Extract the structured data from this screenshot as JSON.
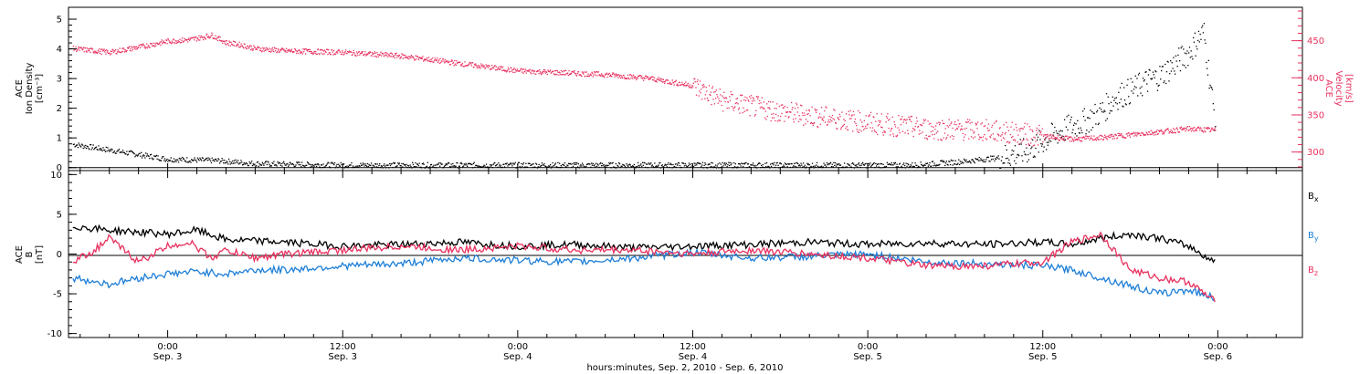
{
  "colors": {
    "density": "#000000",
    "velocity": "#e8315f",
    "bx": "#000000",
    "by": "#1e7fd8",
    "bz": "#e8315f",
    "frame": "#000000"
  },
  "chart_data": [
    {
      "type": "scatter",
      "panel": "top",
      "ylabel_left": [
        "ACE",
        "Ion Density",
        "[cm⁻³]"
      ],
      "ylabel_right": [
        "ACE",
        "Velocity",
        "[km/s]"
      ],
      "ylim_left": [
        -0.1,
        5.4
      ],
      "ylim_right": [
        275,
        495
      ],
      "yticks_left": [
        "0",
        "1",
        "2",
        "3",
        "4",
        "5"
      ],
      "yticks_right": [
        "300",
        "350",
        "400",
        "450"
      ],
      "grid": false,
      "series": [
        {
          "axis": "left",
          "color": "black",
          "x": [
            -6.5,
            0,
            3.5,
            6,
            12,
            20,
            24,
            30,
            36,
            42,
            48,
            51,
            54,
            57,
            59,
            60,
            61,
            62,
            63,
            64,
            65,
            66,
            67,
            68,
            69,
            70,
            71,
            71.8
          ],
          "y": [
            0.8,
            0.3,
            0.25,
            0.15,
            0.1,
            0.1,
            0.1,
            0.1,
            0.1,
            0.1,
            0.1,
            0.1,
            0.2,
            0.35,
            0.6,
            0.9,
            1.2,
            1.4,
            1.6,
            1.9,
            2.4,
            2.6,
            2.9,
            3.1,
            3.5,
            3.9,
            4.6,
            1.5
          ]
        },
        {
          "axis": "right",
          "color": "red",
          "x": [
            -6.5,
            -4,
            -2,
            0,
            1.5,
            3,
            4,
            5,
            6,
            8,
            12,
            16,
            20,
            24,
            30,
            33,
            36,
            38,
            42,
            48,
            52,
            56,
            60,
            62,
            64,
            66,
            68,
            70,
            71.8
          ],
          "y": [
            440,
            435,
            442,
            450,
            452,
            458,
            448,
            445,
            440,
            437,
            435,
            430,
            420,
            410,
            405,
            400,
            390,
            370,
            355,
            340,
            332,
            330,
            322,
            318,
            320,
            324,
            328,
            332,
            330
          ]
        }
      ]
    },
    {
      "type": "line",
      "panel": "bottom",
      "ylabel": [
        "ACE",
        "B",
        "[nT]"
      ],
      "ylim": [
        -10.5,
        10.5
      ],
      "yticks": [
        "-10",
        "-5",
        "0",
        "5",
        "10"
      ],
      "grid": false,
      "legend_position": "right",
      "series": [
        {
          "name": "Bx",
          "color": "black",
          "x": [
            -6.5,
            -4,
            0,
            2,
            4,
            8,
            12,
            16,
            20,
            24,
            28,
            32,
            36,
            40,
            44,
            48,
            52,
            56,
            60,
            62,
            64,
            66,
            68,
            70,
            71.8
          ],
          "y": [
            3.5,
            3.0,
            2.5,
            3.0,
            1.8,
            1.5,
            1.0,
            1.2,
            1.5,
            1.0,
            1.2,
            0.8,
            1.0,
            1.2,
            1.5,
            1.2,
            1.4,
            1.2,
            1.5,
            1.2,
            2.0,
            2.5,
            2.0,
            1.0,
            -1.0
          ]
        },
        {
          "name": "By",
          "color": "blue",
          "x": [
            -6.5,
            -4,
            -2,
            0,
            2,
            4,
            6,
            8,
            12,
            16,
            20,
            24,
            28,
            32,
            36,
            40,
            44,
            48,
            52,
            56,
            60,
            62,
            64,
            66,
            68,
            70,
            71.8
          ],
          "y": [
            -3.0,
            -3.8,
            -3.0,
            -2.5,
            -2.2,
            -2.5,
            -2.0,
            -2.0,
            -1.5,
            -1.2,
            -0.5,
            -0.8,
            -1.0,
            -0.5,
            0.2,
            -0.5,
            -0.3,
            0.0,
            -1.0,
            -1.2,
            -1.5,
            -2.0,
            -3.0,
            -4.0,
            -5.0,
            -4.5,
            -5.5
          ]
        },
        {
          "name": "Bz",
          "color": "red",
          "x": [
            -6.5,
            -5,
            -4,
            -2,
            0,
            1.5,
            3,
            4,
            6,
            8,
            12,
            16,
            20,
            24,
            28,
            32,
            36,
            40,
            44,
            48,
            52,
            56,
            60,
            62,
            64,
            66,
            68,
            70,
            71.8
          ],
          "y": [
            -1.0,
            0.5,
            2.0,
            -1.0,
            1.0,
            1.5,
            -0.5,
            0.5,
            -0.5,
            0.0,
            0.5,
            1.0,
            0.5,
            1.0,
            0.5,
            0.5,
            0.0,
            0.5,
            0.0,
            -0.5,
            -1.5,
            -1.5,
            -1.0,
            1.5,
            2.5,
            -2.0,
            -3.0,
            -3.5,
            -6.0
          ]
        }
      ],
      "legend": [
        "B",
        "B",
        "B"
      ],
      "legend_subscripts": [
        "x",
        "y",
        "z"
      ]
    }
  ],
  "x_axis": {
    "range_hours": [
      -6.8,
      77.8
    ],
    "ticks_hours": [
      0,
      12,
      24,
      36,
      48,
      60,
      72
    ],
    "tick_times": [
      "0:00",
      "12:00",
      "0:00",
      "12:00",
      "0:00",
      "12:00",
      "0:00"
    ],
    "tick_dates": [
      "Sep. 3",
      "Sep. 3",
      "Sep. 4",
      "Sep. 4",
      "Sep. 5",
      "Sep. 5",
      "Sep. 6"
    ],
    "title": "hours:minutes, Sep.  2, 2010 - Sep.  6, 2010"
  }
}
